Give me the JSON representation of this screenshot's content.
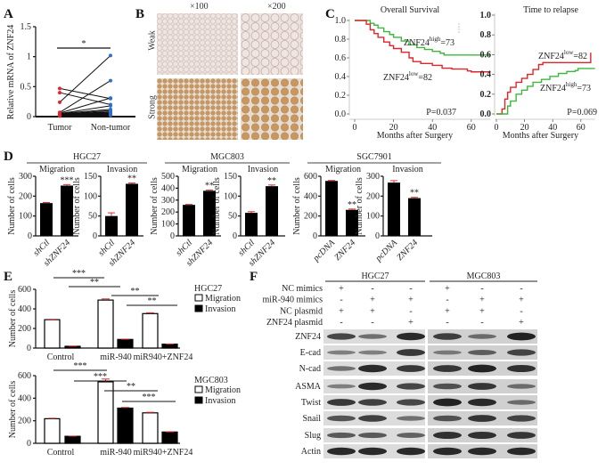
{
  "panel_labels": {
    "A": "A",
    "B": "B",
    "C": "C",
    "D": "D",
    "E": "E",
    "F": "F"
  },
  "chart_data": [
    {
      "id": "A",
      "type": "scatter",
      "ylabel": "Relative mRNA of ZNF24",
      "categories": [
        "Tumor",
        "Non-tumor"
      ],
      "ylim": [
        0,
        1.5
      ],
      "yticks": [
        0,
        0.5,
        1,
        1.5
      ],
      "ytick_labels": [
        "0",
        "0.5",
        "1",
        "1.5"
      ],
      "significance": "*",
      "colors": {
        "tumor": "#e0262a",
        "non_tumor": "#2f6fc4",
        "line": "#111111"
      },
      "pairs": [
        [
          0.47,
          0.3
        ],
        [
          0.4,
          0.2
        ],
        [
          0.24,
          1.02
        ],
        [
          0.07,
          0.6
        ],
        [
          0.06,
          0.31
        ],
        [
          0.05,
          0.18
        ],
        [
          0.05,
          0.12
        ],
        [
          0.04,
          0.1
        ],
        [
          0.04,
          0.08
        ],
        [
          0.03,
          0.07
        ],
        [
          0.03,
          0.06
        ],
        [
          0.02,
          0.05
        ],
        [
          0.02,
          0.04
        ],
        [
          0.02,
          0.03
        ],
        [
          0.01,
          0.02
        ]
      ]
    },
    {
      "id": "B",
      "type": "image-grid",
      "columns": [
        "×100",
        "×200"
      ],
      "rows": [
        "Weak",
        "Strong"
      ]
    },
    {
      "id": "C1",
      "type": "line",
      "title": "Overall Survival",
      "xlabel": "Months after Surgery",
      "xlim": [
        0,
        70
      ],
      "ylim": [
        0,
        1
      ],
      "xticks": [
        0,
        20,
        40,
        60
      ],
      "yticks": [
        "0.0",
        "0.2",
        "0.4",
        "0.6",
        "0.8",
        "1.0"
      ],
      "pvalue": "P=0.037",
      "series": [
        {
          "name": "ZNF24",
          "level": "high",
          "n": "=73",
          "color": "#3cb93c",
          "x": [
            0,
            6,
            8,
            10,
            12,
            15,
            18,
            20,
            24,
            28,
            32,
            36,
            40,
            44,
            46,
            60,
            70
          ],
          "y": [
            1,
            1,
            0.97,
            0.95,
            0.92,
            0.88,
            0.85,
            0.82,
            0.78,
            0.74,
            0.71,
            0.69,
            0.67,
            0.65,
            0.63,
            0.63,
            0.63
          ]
        },
        {
          "name": "ZNF24",
          "level": "low",
          "n": "=82",
          "color": "#e0262a",
          "x": [
            0,
            4,
            6,
            8,
            10,
            12,
            15,
            18,
            20,
            24,
            28,
            30,
            34,
            40,
            45,
            50,
            58,
            60,
            70
          ],
          "y": [
            1,
            1,
            0.96,
            0.9,
            0.86,
            0.82,
            0.77,
            0.73,
            0.7,
            0.66,
            0.6,
            0.56,
            0.54,
            0.52,
            0.49,
            0.48,
            0.46,
            0.45,
            0.45
          ]
        }
      ]
    },
    {
      "id": "C2",
      "type": "line",
      "title": "Time to relapse",
      "xlabel": "Months after Surgery",
      "xlim": [
        0,
        70
      ],
      "ylim": [
        0,
        1
      ],
      "xticks": [
        0,
        20,
        40,
        60
      ],
      "yticks": [
        "0.0",
        "0.2",
        "0.4",
        "0.6",
        "0.8",
        "1.0"
      ],
      "pvalue": "P=0.069",
      "series": [
        {
          "name": "ZNF24",
          "level": "low",
          "n": "=82",
          "color": "#e0262a",
          "x": [
            0,
            3,
            4,
            6,
            8,
            10,
            14,
            18,
            22,
            26,
            30,
            33,
            66,
            67
          ],
          "y": [
            0,
            0,
            0.05,
            0.15,
            0.22,
            0.27,
            0.32,
            0.36,
            0.4,
            0.45,
            0.5,
            0.52,
            0.52,
            0.62
          ]
        },
        {
          "name": "ZNF24",
          "level": "high",
          "n": "=73",
          "color": "#3cb93c",
          "x": [
            0,
            5,
            8,
            10,
            14,
            18,
            22,
            26,
            32,
            38,
            44,
            50,
            56,
            58,
            70
          ],
          "y": [
            0,
            0,
            0.08,
            0.13,
            0.2,
            0.24,
            0.28,
            0.32,
            0.35,
            0.38,
            0.41,
            0.43,
            0.44,
            0.46,
            0.46
          ]
        }
      ]
    },
    {
      "id": "D",
      "type": "bar",
      "ylabel": "Number of cells",
      "groups": [
        {
          "name": "HGC27",
          "subplots": [
            {
              "title": "Migration",
              "categories": [
                "shCtl",
                "shZNF24"
              ],
              "values": [
                165,
                253
              ],
              "errors": [
                3,
                5
              ],
              "significance": [
                "",
                "***"
              ],
              "ylim": [
                0,
                300
              ],
              "yticks": [
                0,
                100,
                200,
                300
              ]
            },
            {
              "title": "Invasion",
              "categories": [
                "shCtl",
                "shZNF24"
              ],
              "values": [
                50,
                131
              ],
              "errors": [
                8,
                2
              ],
              "significance": [
                "",
                "**"
              ],
              "ylim": [
                0,
                150
              ],
              "yticks": [
                0,
                50,
                100,
                150
              ]
            }
          ]
        },
        {
          "name": "MGC803",
          "subplots": [
            {
              "title": "Migration",
              "categories": [
                "shCtl",
                "shZNF24"
              ],
              "values": [
                260,
                378
              ],
              "errors": [
                4,
                6
              ],
              "significance": [
                "",
                "**"
              ],
              "ylim": [
                0,
                500
              ],
              "yticks": [
                0,
                100,
                200,
                300,
                400,
                500
              ]
            },
            {
              "title": "Invasion",
              "categories": [
                "shCtl",
                "shZNF24"
              ],
              "values": [
                58,
                125
              ],
              "errors": [
                3,
                3
              ],
              "significance": [
                "",
                "**"
              ],
              "ylim": [
                0,
                150
              ],
              "yticks": [
                0,
                50,
                100,
                150
              ]
            }
          ]
        },
        {
          "name": "SGC7901",
          "subplots": [
            {
              "title": "Migration",
              "categories": [
                "pcDNA",
                "ZNF24"
              ],
              "values": [
                553,
                262
              ],
              "errors": [
                5,
                8
              ],
              "significance": [
                "",
                "**"
              ],
              "ylim": [
                0,
                600
              ],
              "yticks": [
                0,
                200,
                400,
                600
              ]
            },
            {
              "title": "Invasion",
              "categories": [
                "pcDNA",
                "ZNF24"
              ],
              "values": [
                268,
                190
              ],
              "errors": [
                10,
                4
              ],
              "significance": [
                "",
                "**"
              ],
              "ylim": [
                0,
                300
              ],
              "yticks": [
                0,
                100,
                200,
                300
              ]
            }
          ]
        }
      ]
    },
    {
      "id": "E",
      "type": "bar",
      "ylabel": "Number of cells",
      "categories": [
        "Control",
        "miR-940",
        "miR940+ZNF24"
      ],
      "ylim": [
        0,
        600
      ],
      "yticks": [
        0,
        200,
        400,
        600
      ],
      "legend": [
        "Migration",
        "Invasion"
      ],
      "plots": [
        {
          "cell_line": "HGC27",
          "series": [
            {
              "name": "Migration",
              "values": [
                290,
                490,
                352
              ],
              "errors": [
                4,
                12,
                8
              ]
            },
            {
              "name": "Invasion",
              "values": [
                18,
                88,
                40
              ],
              "errors": [
                2,
                3,
                2
              ]
            }
          ],
          "comparisons": [
            "***",
            "**",
            "**",
            "**"
          ]
        },
        {
          "cell_line": "MGC803",
          "series": [
            {
              "name": "Migration",
              "values": [
                218,
                545,
                270
              ],
              "errors": [
                4,
                25,
                5
              ]
            },
            {
              "name": "Invasion",
              "values": [
                62,
                312,
                100
              ],
              "errors": [
                2,
                6,
                2
              ]
            }
          ],
          "comparisons": [
            "***",
            "***",
            "**",
            "***"
          ]
        }
      ]
    },
    {
      "id": "F",
      "type": "western-blot",
      "cell_lines": [
        "HGC27",
        "MGC803"
      ],
      "conditions": [
        {
          "label": "NC mimics",
          "signs": [
            "+",
            "-",
            "-",
            "+",
            "-",
            "-"
          ]
        },
        {
          "label": "miR-940 mimics",
          "signs": [
            "-",
            "+",
            "+",
            "-",
            "+",
            "+"
          ]
        },
        {
          "label": "NC plasmid",
          "signs": [
            "+",
            "+",
            "-",
            "+",
            "+",
            "-"
          ]
        },
        {
          "label": "ZNF24 plasmid",
          "signs": [
            "-",
            "-",
            "+",
            "-",
            "-",
            "+"
          ]
        }
      ],
      "bands": [
        {
          "protein": "ZNF24",
          "intensity": [
            0.7,
            0.4,
            0.9,
            0.75,
            0.4,
            0.95
          ]
        },
        {
          "protein": "E-cad",
          "intensity": [
            0.3,
            0.3,
            0.8,
            0.3,
            0.5,
            0.7
          ]
        },
        {
          "protein": "N-cad",
          "intensity": [
            0.4,
            0.9,
            0.8,
            0.8,
            0.95,
            0.85
          ]
        },
        {
          "protein": "ASMA",
          "intensity": [
            0.3,
            0.9,
            0.7,
            0.6,
            0.8,
            0.4
          ]
        },
        {
          "protein": "Twist",
          "intensity": [
            0.8,
            0.75,
            0.7,
            0.95,
            0.9,
            0.4
          ]
        },
        {
          "protein": "Snail",
          "intensity": [
            0.6,
            0.75,
            0.4,
            0.6,
            0.8,
            0.7
          ]
        },
        {
          "protein": "Slug",
          "intensity": [
            0.55,
            0.55,
            0.5,
            0.85,
            0.85,
            0.8
          ]
        },
        {
          "protein": "Actin",
          "intensity": [
            0.9,
            0.9,
            0.9,
            0.9,
            0.9,
            0.9
          ]
        }
      ]
    }
  ]
}
